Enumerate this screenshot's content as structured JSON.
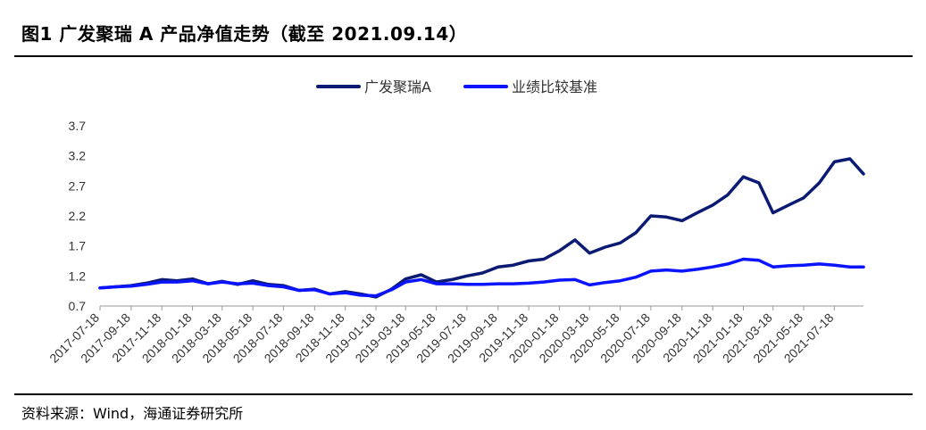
{
  "header": {
    "title": "图1   广发聚瑞 A 产品净值走势（截至 2021.09.14）"
  },
  "footer": {
    "source": "资料来源：Wind，海通证券研究所"
  },
  "chart_data": {
    "type": "line",
    "title": "图1   广发聚瑞 A 产品净值走势（截至 2021.09.14）",
    "ylim": [
      0.7,
      3.7
    ],
    "yticks": [
      "3.7",
      "3.2",
      "2.7",
      "2.2",
      "1.7",
      "1.2",
      "0.7"
    ],
    "xticks": [
      "2017-07-18",
      "2017-09-18",
      "2017-11-18",
      "2018-01-18",
      "2018-03-18",
      "2018-05-18",
      "2018-07-18",
      "2018-09-18",
      "2018-11-18",
      "2019-01-18",
      "2019-03-18",
      "2019-05-18",
      "2019-07-18",
      "2019-09-18",
      "2019-11-18",
      "2020-01-18",
      "2020-03-18",
      "2020-05-18",
      "2020-07-18",
      "2020-09-18",
      "2020-11-18",
      "2021-01-18",
      "2021-03-18",
      "2021-05-18",
      "2021-07-18"
    ],
    "grid": false,
    "legend": "top-center",
    "series": [
      {
        "name": "广发聚瑞A",
        "color": "#0b1a73",
        "points": [
          [
            "2017-07-18",
            1.0
          ],
          [
            "2017-08-18",
            1.02
          ],
          [
            "2017-09-18",
            1.04
          ],
          [
            "2017-10-18",
            1.08
          ],
          [
            "2017-11-18",
            1.14
          ],
          [
            "2017-12-18",
            1.12
          ],
          [
            "2018-01-18",
            1.15
          ],
          [
            "2018-02-18",
            1.07
          ],
          [
            "2018-03-18",
            1.11
          ],
          [
            "2018-04-18",
            1.06
          ],
          [
            "2018-05-18",
            1.12
          ],
          [
            "2018-06-18",
            1.06
          ],
          [
            "2018-07-18",
            1.04
          ],
          [
            "2018-08-18",
            0.96
          ],
          [
            "2018-09-18",
            0.98
          ],
          [
            "2018-10-18",
            0.9
          ],
          [
            "2018-11-18",
            0.94
          ],
          [
            "2018-12-18",
            0.9
          ],
          [
            "2019-01-18",
            0.85
          ],
          [
            "2019-02-18",
            0.98
          ],
          [
            "2019-03-18",
            1.15
          ],
          [
            "2019-04-18",
            1.22
          ],
          [
            "2019-05-18",
            1.1
          ],
          [
            "2019-06-18",
            1.14
          ],
          [
            "2019-07-18",
            1.2
          ],
          [
            "2019-08-18",
            1.25
          ],
          [
            "2019-09-18",
            1.35
          ],
          [
            "2019-10-18",
            1.38
          ],
          [
            "2019-11-18",
            1.45
          ],
          [
            "2019-12-18",
            1.48
          ],
          [
            "2020-01-18",
            1.62
          ],
          [
            "2020-02-18",
            1.8
          ],
          [
            "2020-03-18",
            1.58
          ],
          [
            "2020-04-18",
            1.68
          ],
          [
            "2020-05-18",
            1.75
          ],
          [
            "2020-06-18",
            1.92
          ],
          [
            "2020-07-18",
            2.2
          ],
          [
            "2020-08-18",
            2.18
          ],
          [
            "2020-09-18",
            2.12
          ],
          [
            "2020-10-18",
            2.25
          ],
          [
            "2020-11-18",
            2.38
          ],
          [
            "2020-12-18",
            2.55
          ],
          [
            "2021-01-18",
            2.85
          ],
          [
            "2021-02-18",
            2.75
          ],
          [
            "2021-03-18",
            2.25
          ],
          [
            "2021-04-18",
            2.38
          ],
          [
            "2021-05-18",
            2.5
          ],
          [
            "2021-06-18",
            2.75
          ],
          [
            "2021-07-18",
            3.1
          ],
          [
            "2021-08-18",
            3.15
          ],
          [
            "2021-09-14",
            2.9
          ]
        ]
      },
      {
        "name": "业绩比较基准",
        "color": "#0a14ff",
        "points": [
          [
            "2017-07-18",
            1.0
          ],
          [
            "2017-08-18",
            1.02
          ],
          [
            "2017-09-18",
            1.03
          ],
          [
            "2017-10-18",
            1.06
          ],
          [
            "2017-11-18",
            1.1
          ],
          [
            "2017-12-18",
            1.1
          ],
          [
            "2018-01-18",
            1.12
          ],
          [
            "2018-02-18",
            1.07
          ],
          [
            "2018-03-18",
            1.1
          ],
          [
            "2018-04-18",
            1.07
          ],
          [
            "2018-05-18",
            1.08
          ],
          [
            "2018-06-18",
            1.04
          ],
          [
            "2018-07-18",
            1.02
          ],
          [
            "2018-08-18",
            0.96
          ],
          [
            "2018-09-18",
            0.97
          ],
          [
            "2018-10-18",
            0.9
          ],
          [
            "2018-11-18",
            0.92
          ],
          [
            "2018-12-18",
            0.88
          ],
          [
            "2019-01-18",
            0.87
          ],
          [
            "2019-02-18",
            0.97
          ],
          [
            "2019-03-18",
            1.1
          ],
          [
            "2019-04-18",
            1.14
          ],
          [
            "2019-05-18",
            1.07
          ],
          [
            "2019-06-18",
            1.07
          ],
          [
            "2019-07-18",
            1.06
          ],
          [
            "2019-08-18",
            1.06
          ],
          [
            "2019-09-18",
            1.07
          ],
          [
            "2019-10-18",
            1.07
          ],
          [
            "2019-11-18",
            1.08
          ],
          [
            "2019-12-18",
            1.1
          ],
          [
            "2020-01-18",
            1.13
          ],
          [
            "2020-02-18",
            1.14
          ],
          [
            "2020-03-18",
            1.05
          ],
          [
            "2020-04-18",
            1.09
          ],
          [
            "2020-05-18",
            1.12
          ],
          [
            "2020-06-18",
            1.18
          ],
          [
            "2020-07-18",
            1.28
          ],
          [
            "2020-08-18",
            1.3
          ],
          [
            "2020-09-18",
            1.28
          ],
          [
            "2020-10-18",
            1.31
          ],
          [
            "2020-11-18",
            1.35
          ],
          [
            "2020-12-18",
            1.4
          ],
          [
            "2021-01-18",
            1.48
          ],
          [
            "2021-02-18",
            1.46
          ],
          [
            "2021-03-18",
            1.35
          ],
          [
            "2021-04-18",
            1.37
          ],
          [
            "2021-05-18",
            1.38
          ],
          [
            "2021-06-18",
            1.4
          ],
          [
            "2021-07-18",
            1.38
          ],
          [
            "2021-08-18",
            1.35
          ],
          [
            "2021-09-14",
            1.35
          ]
        ]
      }
    ]
  }
}
